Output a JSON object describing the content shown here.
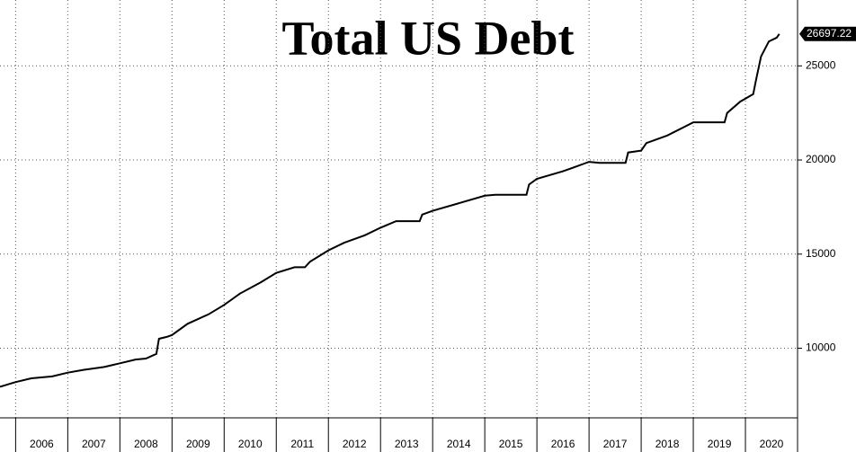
{
  "chart_data": {
    "type": "line",
    "title": "Total US Debt",
    "color": "#000000",
    "grid": true,
    "xlim": [
      2005.7,
      2021.0
    ],
    "ylim": [
      6300,
      28500
    ],
    "xticks": [
      2006,
      2007,
      2008,
      2009,
      2010,
      2011,
      2012,
      2013,
      2014,
      2015,
      2016,
      2017,
      2018,
      2019,
      2020
    ],
    "yticks": [
      10000,
      15000,
      20000,
      25000
    ],
    "x": [
      2005.7,
      2006.0,
      2006.3,
      2006.7,
      2007.0,
      2007.3,
      2007.7,
      2008.0,
      2008.3,
      2008.5,
      2008.7,
      2008.75,
      2008.9,
      2009.0,
      2009.3,
      2009.7,
      2010.0,
      2010.3,
      2010.7,
      2011.0,
      2011.35,
      2011.55,
      2011.65,
      2012.0,
      2012.3,
      2012.7,
      2013.0,
      2013.3,
      2013.75,
      2013.8,
      2014.0,
      2014.5,
      2015.0,
      2015.2,
      2015.8,
      2015.85,
      2016.0,
      2016.5,
      2017.0,
      2017.2,
      2017.7,
      2017.75,
      2018.0,
      2018.1,
      2018.5,
      2019.0,
      2019.1,
      2019.6,
      2019.65,
      2019.9,
      2020.15,
      2020.2,
      2020.3,
      2020.45,
      2020.6,
      2020.65
    ],
    "values": [
      7950,
      8200,
      8400,
      8500,
      8700,
      8850,
      9000,
      9200,
      9400,
      9450,
      9700,
      10500,
      10600,
      10700,
      11300,
      11800,
      12300,
      12900,
      13500,
      14000,
      14300,
      14300,
      14600,
      15200,
      15600,
      16000,
      16400,
      16750,
      16750,
      17100,
      17300,
      17700,
      18100,
      18150,
      18150,
      18700,
      19000,
      19400,
      19900,
      19850,
      19850,
      20400,
      20500,
      20900,
      21300,
      22000,
      22000,
      22000,
      22500,
      23100,
      23500,
      24200,
      25500,
      26300,
      26500,
      26697.22
    ]
  }
}
